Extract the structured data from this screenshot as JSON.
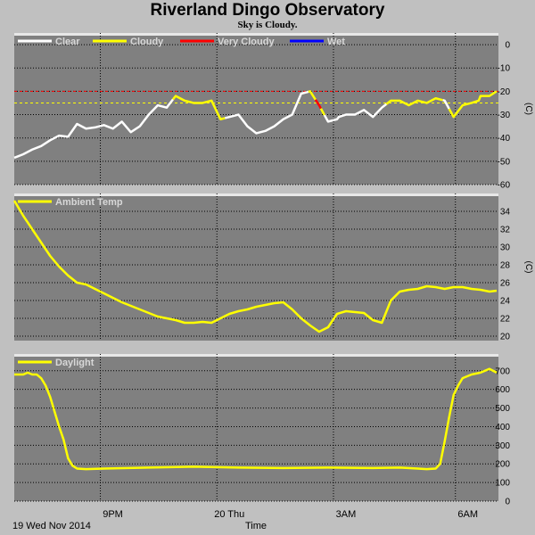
{
  "title": "Riverland Dingo Observatory",
  "subtitle": "Sky is Cloudy.",
  "colors": {
    "background": "#c0c0c0",
    "plot_bg": "#808080",
    "grid": "#000000",
    "clear": "#ffffff",
    "cloudy": "#ffff00",
    "very_cloudy": "#ff0000",
    "wet": "#0000ff",
    "legend_text": "#d8d8d8"
  },
  "chart_data": [
    {
      "type": "line",
      "name": "sky-temperature",
      "legend": [
        {
          "label": "Clear",
          "color": "#ffffff"
        },
        {
          "label": "Cloudy",
          "color": "#ffff00"
        },
        {
          "label": "Very Cloudy",
          "color": "#ff0000"
        },
        {
          "label": "Wet",
          "color": "#0000ff"
        }
      ],
      "ylabel": "(C)",
      "ylim": [
        -60,
        5
      ],
      "yticks": [
        0,
        -10,
        -20,
        -30,
        -40,
        -50,
        -60
      ],
      "thresholds": [
        {
          "value": -20,
          "color": "#ff0000"
        },
        {
          "value": -25,
          "color": "#ffff00"
        }
      ],
      "x": [
        0,
        10,
        20,
        30,
        40,
        50,
        60,
        70,
        80,
        90,
        100,
        110,
        120,
        130,
        140,
        150,
        160,
        170,
        180,
        190,
        200,
        210,
        220,
        230,
        240,
        250,
        260,
        270,
        280,
        290,
        300,
        310,
        320,
        330,
        340,
        350,
        360,
        362,
        370,
        380,
        390,
        400,
        410,
        420,
        430,
        440,
        450,
        460,
        470,
        480,
        490,
        500,
        510,
        518,
        520,
        530,
        538
      ],
      "values": [
        -48.5,
        -47,
        -45,
        -43.5,
        -41,
        -39,
        -39.5,
        -34,
        -36,
        -35.5,
        -34.5,
        -36,
        -33,
        -37.5,
        -35,
        -30,
        -26,
        -27,
        -22,
        -24,
        -25,
        -25,
        -24,
        -32,
        -31,
        -30,
        -35,
        -38,
        -37,
        -35,
        -32,
        -30,
        -21,
        -20,
        -26,
        -33,
        -32,
        -31,
        -30,
        -30,
        -28,
        -31,
        -27,
        -24,
        -24,
        -26,
        -24,
        -25,
        -23,
        -24,
        -31,
        -26,
        -25,
        -24,
        -22,
        -22,
        -20
      ],
      "segments": [
        {
          "from_x": 0,
          "to_x": 177,
          "color": "#ffffff"
        },
        {
          "from_x": 177,
          "to_x": 235,
          "color": "#ffff00"
        },
        {
          "from_x": 235,
          "to_x": 328,
          "color": "#ffffff"
        },
        {
          "from_x": 328,
          "to_x": 336,
          "color": "#ffff00"
        },
        {
          "from_x": 336,
          "to_x": 342,
          "color": "#ff0000"
        },
        {
          "from_x": 342,
          "to_x": 346,
          "color": "#ffff00"
        },
        {
          "from_x": 346,
          "to_x": 415,
          "color": "#ffffff"
        },
        {
          "from_x": 415,
          "to_x": 478,
          "color": "#ffff00"
        },
        {
          "from_x": 478,
          "to_x": 485,
          "color": "#ffffff"
        },
        {
          "from_x": 485,
          "to_x": 538,
          "color": "#ffff00"
        }
      ]
    },
    {
      "type": "line",
      "name": "ambient-temperature",
      "legend": [
        {
          "label": "Ambient Temp",
          "color": "#ffff00"
        }
      ],
      "ylabel": "(C)",
      "ylim": [
        19.5,
        36
      ],
      "yticks": [
        20,
        22,
        24,
        26,
        28,
        30,
        32,
        34
      ],
      "x": [
        0,
        10,
        20,
        30,
        40,
        50,
        60,
        70,
        80,
        90,
        100,
        110,
        120,
        130,
        140,
        150,
        160,
        170,
        180,
        190,
        200,
        210,
        220,
        230,
        240,
        250,
        260,
        270,
        280,
        290,
        300,
        310,
        320,
        330,
        340,
        350,
        360,
        370,
        380,
        390,
        400,
        410,
        420,
        430,
        440,
        450,
        460,
        470,
        480,
        490,
        500,
        510,
        520,
        530,
        538
      ],
      "values": [
        35.2,
        33.5,
        32,
        30.5,
        29,
        27.8,
        26.8,
        26,
        25.8,
        25.3,
        24.8,
        24.3,
        23.8,
        23.4,
        23,
        22.6,
        22.2,
        22,
        21.8,
        21.5,
        21.5,
        21.6,
        21.5,
        22,
        22.5,
        22.8,
        23,
        23.3,
        23.5,
        23.7,
        23.8,
        23,
        22,
        21.2,
        20.5,
        21,
        22.5,
        22.8,
        22.7,
        22.6,
        21.8,
        21.5,
        24,
        25,
        25.2,
        25.3,
        25.6,
        25.5,
        25.3,
        25.5,
        25.5,
        25.3,
        25.2,
        25,
        25.1
      ],
      "color": "#ffff00"
    },
    {
      "type": "line",
      "name": "daylight",
      "legend": [
        {
          "label": "Daylight",
          "color": "#ffff00"
        }
      ],
      "ylim": [
        0,
        790
      ],
      "yticks": [
        0,
        100,
        200,
        300,
        400,
        500,
        600,
        700
      ],
      "x": [
        0,
        10,
        15,
        20,
        25,
        30,
        35,
        40,
        45,
        50,
        55,
        60,
        65,
        70,
        80,
        100,
        150,
        200,
        250,
        300,
        350,
        400,
        430,
        450,
        460,
        470,
        475,
        480,
        485,
        490,
        495,
        500,
        510,
        520,
        530,
        538
      ],
      "values": [
        680,
        680,
        690,
        680,
        680,
        660,
        620,
        560,
        480,
        400,
        330,
        230,
        190,
        175,
        172,
        175,
        180,
        185,
        180,
        178,
        180,
        178,
        180,
        175,
        172,
        175,
        200,
        320,
        450,
        570,
        620,
        660,
        680,
        690,
        710,
        690
      ],
      "color": "#ffff00"
    }
  ],
  "x_axis": {
    "ticks": [
      {
        "x": 96,
        "label": "9PM"
      },
      {
        "x": 226,
        "label": "20 Thu"
      },
      {
        "x": 356,
        "label": "3AM"
      },
      {
        "x": 492,
        "label": "6AM"
      }
    ],
    "date_label": "19 Wed Nov 2014",
    "label": "Time",
    "xlim": [
      0,
      540
    ]
  }
}
